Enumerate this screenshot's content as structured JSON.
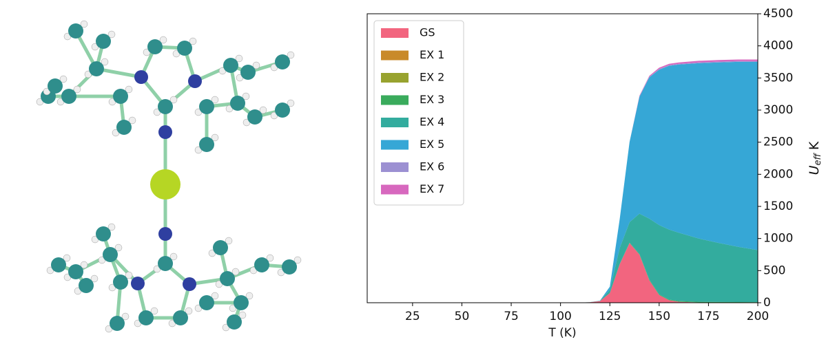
{
  "chart_data": {
    "type": "stacked_area",
    "x_label": "T (K)",
    "y_label": {
      "symbol": "U",
      "subscript": "eff",
      "unit": "K"
    },
    "x": [
      2,
      25,
      50,
      75,
      100,
      110,
      115,
      120,
      125,
      130,
      135,
      140,
      145,
      150,
      155,
      160,
      170,
      180,
      190,
      200
    ],
    "xlim": [
      2,
      200
    ],
    "xticks": [
      25,
      50,
      75,
      100,
      125,
      150,
      175,
      200
    ],
    "ylim": [
      0,
      4500
    ],
    "yticks": [
      0,
      500,
      1000,
      1500,
      2000,
      2500,
      3000,
      3500,
      4000,
      4500
    ],
    "y_axis_side": "right",
    "legend": "upper left",
    "series": [
      {
        "name": "GS",
        "color": "#f2657f",
        "values": [
          0,
          0,
          0,
          0,
          0,
          2,
          8,
          25,
          150,
          600,
          930,
          750,
          350,
          120,
          40,
          15,
          5,
          2,
          1,
          0
        ]
      },
      {
        "name": "EX 1",
        "color": "#c98a2a",
        "values": [
          0,
          0,
          0,
          0,
          0,
          0,
          0,
          0,
          0,
          0,
          0,
          0,
          0,
          0,
          0,
          0,
          0,
          0,
          0,
          0
        ]
      },
      {
        "name": "EX 2",
        "color": "#98a32f",
        "values": [
          0,
          0,
          0,
          0,
          0,
          0,
          0,
          0,
          0,
          0,
          0,
          0,
          0,
          0,
          0,
          0,
          0,
          0,
          0,
          0
        ]
      },
      {
        "name": "EX 3",
        "color": "#3aab5c",
        "values": [
          0,
          0,
          0,
          0,
          0,
          0,
          0,
          0,
          0,
          2,
          5,
          8,
          10,
          10,
          10,
          10,
          10,
          10,
          10,
          10
        ]
      },
      {
        "name": "EX 4",
        "color": "#33ac9e",
        "values": [
          0,
          0,
          0,
          0,
          0,
          0,
          1,
          5,
          50,
          250,
          320,
          630,
          950,
          1080,
          1090,
          1065,
          985,
          920,
          860,
          810
        ]
      },
      {
        "name": "EX 5",
        "color": "#36a7d6",
        "values": [
          0,
          0,
          0,
          0,
          0,
          0,
          0,
          2,
          50,
          450,
          1250,
          1820,
          2200,
          2420,
          2550,
          2620,
          2730,
          2810,
          2880,
          2930
        ]
      },
      {
        "name": "EX 6",
        "color": "#9c90d2",
        "values": [
          0,
          0,
          0,
          0,
          0,
          0,
          0,
          0,
          0,
          0,
          0,
          5,
          8,
          10,
          10,
          10,
          12,
          12,
          12,
          12
        ]
      },
      {
        "name": "EX 7",
        "color": "#d768be",
        "values": [
          0,
          0,
          0,
          0,
          0,
          0,
          0,
          0,
          0,
          0,
          0,
          10,
          15,
          20,
          20,
          22,
          25,
          25,
          25,
          25
        ]
      }
    ]
  }
}
